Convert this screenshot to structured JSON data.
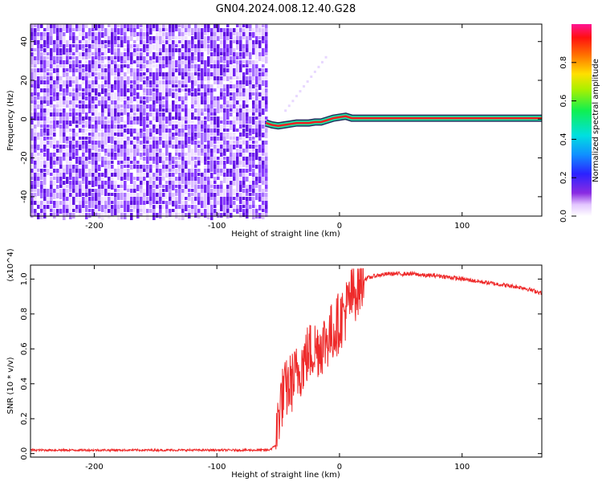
{
  "title": "GN04.2024.008.12.40.G28",
  "chart_data": [
    {
      "type": "heatmap",
      "xlabel": "Height of straight line (km)",
      "ylabel": "Frequency (Hz)",
      "xlim": [
        -252,
        165
      ],
      "ylim": [
        -50,
        49
      ],
      "xticks": [
        -200,
        -100,
        0,
        100
      ],
      "yticks": [
        -40,
        -20,
        0,
        20,
        40
      ],
      "colorbar": {
        "label": "Normalized spectral amplitude",
        "ticks": [
          0.0,
          0.2,
          0.4,
          0.6,
          0.8
        ],
        "ticklabels": [
          "0.0",
          "0.2",
          "0.4",
          "0.6",
          "0.8"
        ],
        "range": [
          0,
          1
        ]
      },
      "noise_region_x": [
        -252,
        -60
      ],
      "signal_track": {
        "x": [
          -60,
          -55,
          -50,
          -45,
          -40,
          -35,
          -30,
          -25,
          -20,
          -15,
          -10,
          -5,
          0,
          5,
          10,
          165
        ],
        "freq": [
          -2,
          -3,
          -3.5,
          -3,
          -2.5,
          -2,
          -2,
          -2,
          -1.5,
          -1.5,
          -0.5,
          0.5,
          1,
          1.5,
          0.5,
          0.5
        ],
        "amplitude_level": "high"
      }
    },
    {
      "type": "line",
      "xlabel": "Height of straight line (km)",
      "ylabel": "SNR (10 * v/v)",
      "y_multiplier": "(x10^4)",
      "xlim": [
        -252,
        165
      ],
      "ylim": [
        -0.02,
        1.08
      ],
      "xticks": [
        -200,
        -100,
        0,
        100
      ],
      "yticks": [
        0.0,
        0.2,
        0.4,
        0.6,
        0.8,
        1.0
      ],
      "yticklabels": [
        "0.0",
        "0.2",
        "0.4",
        "0.6",
        "0.8",
        "1.0"
      ],
      "line_color": "#ee2a2a",
      "series": [
        {
          "x": [
            -252,
            -200,
            -150,
            -100,
            -70,
            -58,
            -55,
            -52,
            -50,
            -48,
            -45,
            -40,
            -35,
            -30,
            -25,
            -20,
            -15,
            -10,
            -5,
            0,
            5,
            10,
            15,
            20,
            30,
            40,
            50,
            60,
            70,
            80,
            90,
            100,
            110,
            120,
            130,
            140,
            150,
            160,
            165
          ],
          "y": [
            0.02,
            0.02,
            0.02,
            0.02,
            0.02,
            0.02,
            0.03,
            0.05,
            0.2,
            0.3,
            0.35,
            0.4,
            0.45,
            0.52,
            0.58,
            0.6,
            0.62,
            0.66,
            0.7,
            0.76,
            0.82,
            0.9,
            0.96,
            1.0,
            1.02,
            1.03,
            1.03,
            1.03,
            1.02,
            1.02,
            1.01,
            1.0,
            0.99,
            0.98,
            0.97,
            0.96,
            0.95,
            0.93,
            0.92
          ]
        }
      ]
    }
  ]
}
